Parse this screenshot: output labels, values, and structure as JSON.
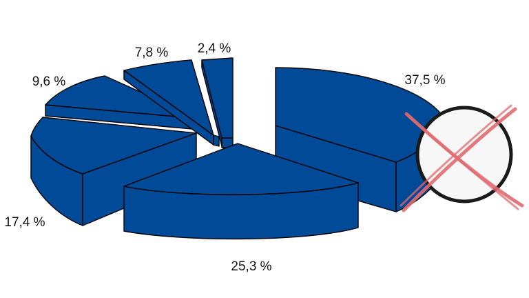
{
  "chart_data": {
    "type": "pie",
    "style": "3d-exploded",
    "slices": [
      {
        "label": "37,5 %",
        "value": 37.5
      },
      {
        "label": "25,3 %",
        "value": 25.3
      },
      {
        "label": "17,4 %",
        "value": 17.4
      },
      {
        "label": "9,6 %",
        "value": 9.6
      },
      {
        "label": "7,8 %",
        "value": 7.8
      },
      {
        "label": "2,4 %",
        "value": 2.4
      }
    ],
    "colors": {
      "slice_fill": "#004A98",
      "outline": "#000000"
    },
    "overlay": {
      "symbol": "crossed-out-circle",
      "circle_fill": "#F7F7F7",
      "circle_stroke": "#1A1A1A",
      "cross_color": "#E06A6F"
    }
  }
}
